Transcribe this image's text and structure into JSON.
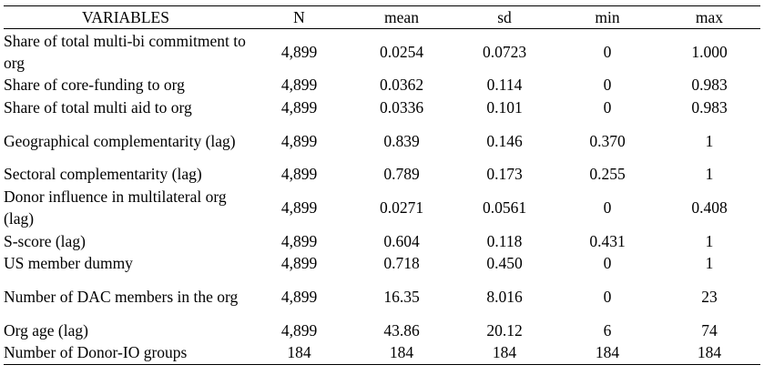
{
  "table": {
    "headers": [
      "VARIABLES",
      "N",
      "mean",
      "sd",
      "min",
      "max"
    ],
    "rows": [
      {
        "label": "Share of total multi-bi commitment to org",
        "n": "4,899",
        "mean": "0.0254",
        "sd": "0.0723",
        "min": "0",
        "max": "1.000"
      },
      {
        "label": "Share of core-funding to org",
        "n": "4,899",
        "mean": "0.0362",
        "sd": "0.114",
        "min": "0",
        "max": "0.983"
      },
      {
        "label": "Share of total multi aid to org",
        "n": "4,899",
        "mean": "0.0336",
        "sd": "0.101",
        "min": "0",
        "max": "0.983"
      },
      {
        "label": "Geographical complementarity (lag)",
        "n": "4,899",
        "mean": "0.839",
        "sd": "0.146",
        "min": "0.370",
        "max": "1"
      },
      {
        "label": "Sectoral complementarity (lag)",
        "n": "4,899",
        "mean": "0.789",
        "sd": "0.173",
        "min": "0.255",
        "max": "1"
      },
      {
        "label": "Donor influence in multilateral org (lag)",
        "n": "4,899",
        "mean": "0.0271",
        "sd": "0.0561",
        "min": "0",
        "max": "0.408"
      },
      {
        "label": "S-score (lag)",
        "n": "4,899",
        "mean": "0.604",
        "sd": "0.118",
        "min": "0.431",
        "max": "1"
      },
      {
        "label": "US member dummy",
        "n": "4,899",
        "mean": "0.718",
        "sd": "0.450",
        "min": "0",
        "max": "1"
      },
      {
        "label": "Number of DAC members in the org",
        "n": "4,899",
        "mean": "16.35",
        "sd": "8.016",
        "min": "0",
        "max": "23"
      },
      {
        "label": "Org age (lag)",
        "n": "4,899",
        "mean": "43.86",
        "sd": "20.12",
        "min": "6",
        "max": "74"
      },
      {
        "label": "Number of Donor-IO groups",
        "n": "184",
        "mean": "184",
        "sd": "184",
        "min": "184",
        "max": "184"
      }
    ]
  }
}
